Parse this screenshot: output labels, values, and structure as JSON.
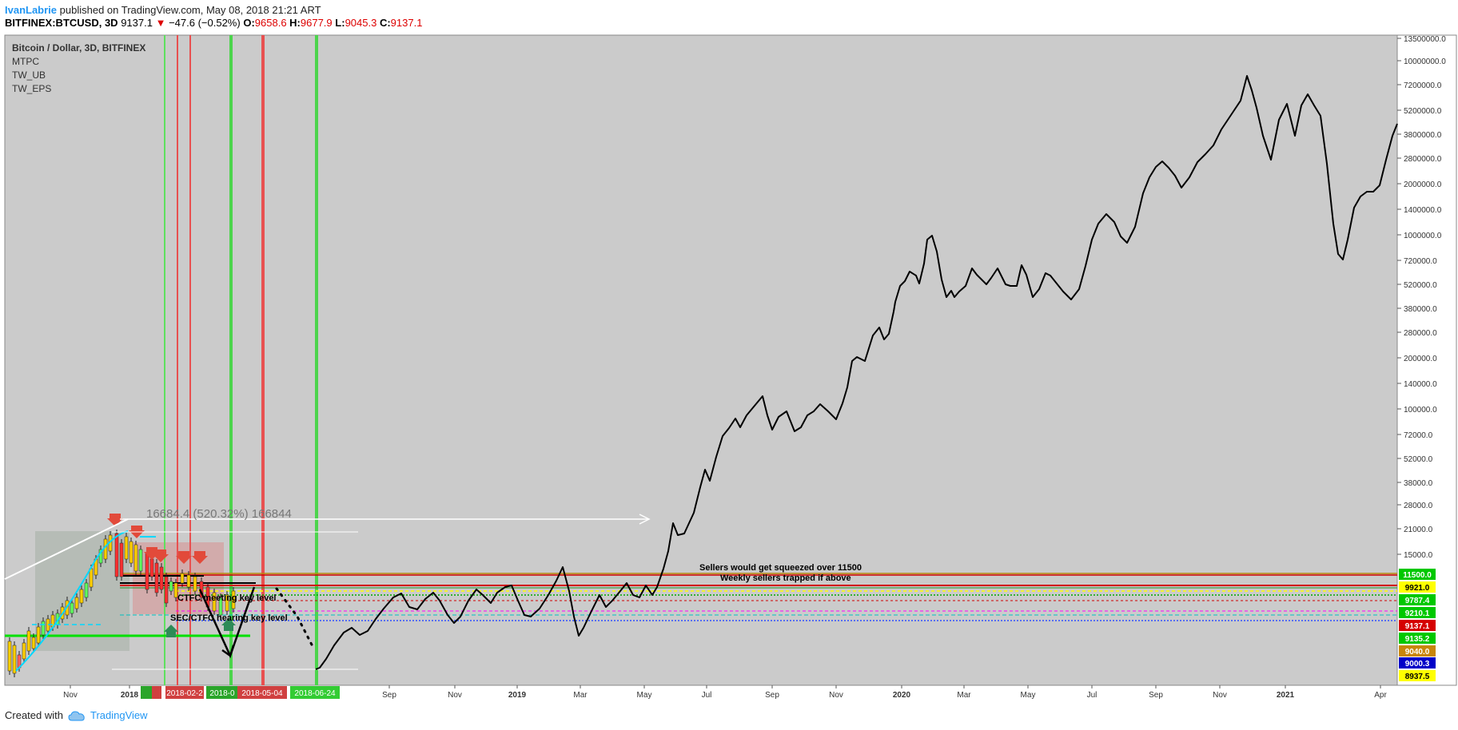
{
  "header": {
    "author": "IvanLabrie",
    "published_text": "published on TradingView.com, May 08, 2018 21:21 ART",
    "symbol": "BITFINEX:BTCUSD, 3D",
    "last": "9137.1",
    "down_arrow": "▼",
    "change": "−47.6 (−0.52%)",
    "o_label": "O:",
    "o_value": "9658.6",
    "h_label": "H:",
    "h_value": "9677.9",
    "l_label": "L:",
    "l_value": "9045.3",
    "c_label": "C:",
    "c_value": "9137.1"
  },
  "legend": {
    "title": "Bitcoin / Dollar, 3D, BITFINEX",
    "indicators": [
      "MTPC",
      "TW_UB",
      "TW_EPS"
    ]
  },
  "footer": {
    "created_with": "Created with",
    "brand": "TradingView"
  },
  "colors": {
    "chart_bg": "#cbcbcb",
    "green_line": "#4cd44c",
    "red_line": "#e85050",
    "projection": "#000000"
  },
  "chart_data": {
    "type": "line",
    "title": "Bitcoin / Dollar, 3D, BITFINEX",
    "y_scale": "log",
    "y_tick_labels": [
      "13500000.0",
      "10000000.0",
      "7200000.0",
      "5200000.0",
      "3800000.0",
      "2800000.0",
      "2000000.0",
      "1400000.0",
      "1000000.0",
      "720000.0",
      "520000.0",
      "380000.0",
      "280000.0",
      "200000.0",
      "140000.0",
      "100000.0",
      "72000.0",
      "52000.0",
      "38000.0",
      "28000.0",
      "21000.0",
      "15000.0"
    ],
    "x_tick_labels": [
      "Nov",
      "2018",
      "Sep",
      "Nov",
      "2019",
      "Mar",
      "May",
      "Jul",
      "Sep",
      "Nov",
      "2020",
      "Mar",
      "May",
      "Jul",
      "Sep",
      "Nov",
      "2021",
      "Apr"
    ],
    "price_tags": [
      {
        "value": "11500.0",
        "bg": "#00c800",
        "fg": "#ffffff"
      },
      {
        "value": "9921.0",
        "bg": "#ffff00",
        "fg": "#000000"
      },
      {
        "value": "9787.4",
        "bg": "#00c800",
        "fg": "#ffffff"
      },
      {
        "value": "9210.1",
        "bg": "#00c800",
        "fg": "#ffffff"
      },
      {
        "value": "9137.1",
        "bg": "#d50000",
        "fg": "#ffffff"
      },
      {
        "value": "9135.2",
        "bg": "#00c800",
        "fg": "#ffffff"
      },
      {
        "value": "9040.0",
        "bg": "#c8860a",
        "fg": "#ffffff"
      },
      {
        "value": "9000.3",
        "bg": "#0000c8",
        "fg": "#ffffff"
      },
      {
        "value": "8937.5",
        "bg": "#ffff00",
        "fg": "#000000"
      }
    ],
    "date_tags": [
      {
        "label": "2018-0",
        "color": "#2aa52a"
      },
      {
        "label": "2018-02-2",
        "color": "#d04040"
      },
      {
        "label": "2018-0",
        "color": "#2aa52a"
      },
      {
        "label": "2018-05-04",
        "color": "#d04040"
      },
      {
        "label": "2018-06-24",
        "color": "#33cc33"
      }
    ],
    "annotations": {
      "measure": "16684.4 (520.32%) 166844",
      "sellers_squeezed": "Sellers would get squeezed over 11500",
      "weekly_sellers": "Weekly sellers trapped if above",
      "ctfc_key": "CTFC meeting key level",
      "sec_ctfc_key": "SEC/CTFC hearing key level"
    }
  }
}
